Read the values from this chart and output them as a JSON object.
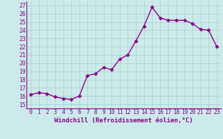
{
  "x": [
    0,
    1,
    2,
    3,
    4,
    5,
    6,
    7,
    8,
    9,
    10,
    11,
    12,
    13,
    14,
    15,
    16,
    17,
    18,
    19,
    20,
    21,
    22,
    23
  ],
  "y": [
    16.2,
    16.4,
    16.3,
    15.9,
    15.7,
    15.6,
    16.0,
    18.5,
    18.7,
    19.5,
    19.2,
    20.5,
    21.0,
    22.7,
    24.5,
    26.8,
    25.5,
    25.2,
    25.2,
    25.2,
    24.8,
    24.1,
    24.0,
    22.0
  ],
  "line_color": "#990099",
  "marker": "D",
  "marker_size": 2.5,
  "xlabel": "Windchill (Refroidissement éolien,°C)",
  "xlim": [
    -0.5,
    23.5
  ],
  "ylim": [
    14.5,
    27.5
  ],
  "yticks": [
    15,
    16,
    17,
    18,
    19,
    20,
    21,
    22,
    23,
    24,
    25,
    26,
    27
  ],
  "xticks": [
    0,
    1,
    2,
    3,
    4,
    5,
    6,
    7,
    8,
    9,
    10,
    11,
    12,
    13,
    14,
    15,
    16,
    17,
    18,
    19,
    20,
    21,
    22,
    23
  ],
  "bg_color": "#cceaea",
  "grid_color": "#aacccc",
  "line_purple": "#880088",
  "font_size": 5.8,
  "xlabel_fontsize": 6.5,
  "linewidth": 1.0
}
